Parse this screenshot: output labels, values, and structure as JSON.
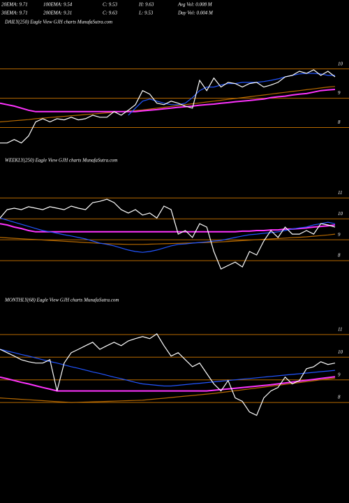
{
  "header": {
    "rows": [
      [
        "20EMA: 9.71",
        "100EMA: 9.54",
        "C: 9.53",
        "H: 9.63",
        "Avg Vol: 0.008 M"
      ],
      [
        "30EMA: 9.71",
        "200EMA: 9.31",
        "C: 9.63",
        "L: 9.53",
        "Day Vol: 0.004 M"
      ]
    ]
  },
  "chart_data": [
    {
      "type": "line",
      "title": "DAILY(250) Eagle View GJH charts MunafaSutra.com",
      "ylim": [
        7.2,
        11.4
      ],
      "yticks": [
        8,
        9,
        10
      ],
      "grid": true,
      "series": [
        {
          "color": "#b86a00",
          "values": [
            8.19,
            8.21,
            8.23,
            8.25,
            8.27,
            8.3,
            8.32,
            8.34,
            8.36,
            8.38,
            8.4,
            8.42,
            8.44,
            8.46,
            8.48,
            8.5,
            8.52,
            8.54,
            8.56,
            8.58,
            8.6,
            8.63,
            8.66,
            8.69,
            8.72,
            8.75,
            8.78,
            8.81,
            8.84,
            8.87,
            8.9,
            8.93,
            8.96,
            8.99,
            9.02,
            9.05,
            9.08,
            9.11,
            9.14,
            9.17,
            9.2,
            9.23,
            9.26,
            9.29,
            9.32,
            9.35,
            9.38,
            9.4
          ]
        },
        {
          "color": "#ff33ff",
          "values": [
            8.83,
            8.78,
            8.73,
            8.66,
            8.59,
            8.54,
            8.54,
            8.54,
            8.54,
            8.54,
            8.54,
            8.54,
            8.54,
            8.54,
            8.54,
            8.54,
            8.54,
            8.54,
            8.54,
            8.54,
            8.57,
            8.59,
            8.61,
            8.64,
            8.66,
            8.69,
            8.71,
            8.73,
            8.76,
            8.78,
            8.8,
            8.83,
            8.85,
            8.88,
            8.9,
            8.92,
            8.95,
            8.97,
            9.02,
            9.05,
            9.07,
            9.11,
            9.14,
            9.16,
            9.21,
            9.26,
            9.28,
            9.3
          ]
        },
        {
          "color": "#2255ff",
          "values": [
            null,
            null,
            null,
            null,
            null,
            null,
            null,
            null,
            null,
            null,
            null,
            null,
            null,
            null,
            null,
            null,
            null,
            null,
            8.42,
            8.66,
            8.9,
            8.97,
            8.9,
            8.83,
            8.78,
            8.78,
            8.83,
            9.02,
            9.26,
            9.38,
            9.38,
            9.45,
            9.5,
            9.5,
            9.54,
            9.54,
            9.54,
            9.57,
            9.61,
            9.66,
            9.73,
            9.78,
            9.83,
            9.85,
            9.85,
            9.83,
            9.78,
            9.78
          ]
        },
        {
          "color": "#ffffff",
          "values": [
            7.47,
            7.47,
            7.59,
            7.47,
            7.71,
            8.19,
            8.3,
            8.19,
            8.3,
            8.26,
            8.35,
            8.26,
            8.3,
            8.42,
            8.35,
            8.35,
            8.54,
            8.42,
            8.59,
            8.78,
            9.26,
            9.14,
            8.83,
            8.78,
            8.9,
            8.83,
            8.73,
            8.66,
            9.61,
            9.26,
            9.69,
            9.38,
            9.54,
            9.5,
            9.38,
            9.5,
            9.54,
            9.38,
            9.45,
            9.54,
            9.73,
            9.78,
            9.92,
            9.85,
            9.97,
            9.78,
            9.92,
            9.73
          ]
        }
      ]
    },
    {
      "type": "line",
      "title": "WEEKLY(250) Eagle View GJH charts MunafaSutra.com",
      "ylim": [
        6.6,
        12.45
      ],
      "yticks": [
        8,
        9,
        10,
        11
      ],
      "grid": true,
      "series": [
        {
          "color": "#b86a00",
          "values": [
            9.11,
            9.09,
            9.07,
            9.05,
            9.03,
            9.01,
            8.99,
            8.97,
            8.95,
            8.93,
            8.91,
            8.89,
            8.87,
            8.85,
            8.83,
            8.81,
            8.8,
            8.79,
            8.78,
            8.78,
            8.78,
            8.79,
            8.8,
            8.81,
            8.82,
            8.83,
            8.84,
            8.85,
            8.86,
            8.87,
            8.88,
            8.9,
            8.92,
            8.94,
            8.96,
            8.98,
            9,
            9.02,
            9.04,
            9.06,
            9.08,
            9.1,
            9.12,
            9.14,
            9.17,
            9.2,
            9.23,
            9.27
          ]
        },
        {
          "color": "#ff33ff",
          "values": [
            9.77,
            9.71,
            9.61,
            9.54,
            9.44,
            9.38,
            9.38,
            9.38,
            9.38,
            9.38,
            9.38,
            9.38,
            9.38,
            9.38,
            9.38,
            9.38,
            9.38,
            9.38,
            9.38,
            9.38,
            9.38,
            9.38,
            9.38,
            9.38,
            9.38,
            9.38,
            9.38,
            9.38,
            9.38,
            9.38,
            9.38,
            9.38,
            9.38,
            9.38,
            9.41,
            9.41,
            9.44,
            9.44,
            9.47,
            9.47,
            9.51,
            9.51,
            9.54,
            9.57,
            9.61,
            9.64,
            9.67,
            9.71
          ]
        },
        {
          "color": "#2255ff",
          "values": [
            10.04,
            9.94,
            9.84,
            9.74,
            9.64,
            9.54,
            9.44,
            9.38,
            9.31,
            9.24,
            9.18,
            9.11,
            9.04,
            8.94,
            8.84,
            8.78,
            8.71,
            8.61,
            8.51,
            8.44,
            8.4,
            8.44,
            8.51,
            8.61,
            8.71,
            8.78,
            8.8,
            8.84,
            8.87,
            8.9,
            8.94,
            8.97,
            9.04,
            9.11,
            9.18,
            9.24,
            9.27,
            9.31,
            9.34,
            9.38,
            9.44,
            9.51,
            9.57,
            9.61,
            9.71,
            9.77,
            9.84,
            9.77
          ]
        },
        {
          "color": "#ffffff",
          "values": [
            10.04,
            10.44,
            10.51,
            10.44,
            10.58,
            10.51,
            10.44,
            10.58,
            10.51,
            10.44,
            10.61,
            10.51,
            10.44,
            10.78,
            10.84,
            10.94,
            10.78,
            10.44,
            10.28,
            10.44,
            10.18,
            10.28,
            10.04,
            10.61,
            10.44,
            9.27,
            9.44,
            9.11,
            9.77,
            9.61,
            8.44,
            7.6,
            7.77,
            7.93,
            7.7,
            8.44,
            8.27,
            8.94,
            9.44,
            9.11,
            9.61,
            9.27,
            9.27,
            9.44,
            9.27,
            9.77,
            9.71,
            9.61
          ]
        }
      ]
    },
    {
      "type": "line",
      "title": "MONTHLY(68) Eagle View GJH charts MunafaSutra.com",
      "ylim": [
        6.8,
        12.2
      ],
      "yticks": [
        8,
        9,
        10,
        11
      ],
      "grid": true,
      "series": [
        {
          "color": "#b86a00",
          "values": [
            8.2,
            8.18,
            8.16,
            8.14,
            8.12,
            8.1,
            8.08,
            8.06,
            8.04,
            8.02,
            8.0,
            8.01,
            8.02,
            8.03,
            8.04,
            8.05,
            8.06,
            8.07,
            8.08,
            8.09,
            8.1,
            8.13,
            8.16,
            8.19,
            8.22,
            8.25,
            8.28,
            8.31,
            8.34,
            8.37,
            8.4,
            8.44,
            8.48,
            8.52,
            8.56,
            8.6,
            8.64,
            8.68,
            8.72,
            8.76,
            8.8,
            8.84,
            8.88,
            8.92,
            8.96,
            9.0,
            9.04,
            9.08
          ]
        },
        {
          "color": "#ff33ff",
          "values": [
            9.12,
            9.05,
            8.97,
            8.89,
            8.82,
            8.74,
            8.66,
            8.59,
            8.51,
            8.51,
            8.51,
            8.51,
            8.51,
            8.51,
            8.51,
            8.51,
            8.51,
            8.51,
            8.51,
            8.51,
            8.51,
            8.51,
            8.51,
            8.51,
            8.51,
            8.51,
            8.51,
            8.51,
            8.51,
            8.51,
            8.54,
            8.57,
            8.6,
            8.63,
            8.66,
            8.69,
            8.72,
            8.75,
            8.78,
            8.82,
            8.86,
            8.9,
            8.94,
            8.98,
            9.02,
            9.06,
            9.1,
            9.14
          ]
        },
        {
          "color": "#2255ff",
          "values": [
            10.35,
            10.27,
            10.2,
            10.12,
            10.05,
            9.97,
            9.89,
            9.81,
            9.74,
            9.66,
            9.58,
            9.51,
            9.43,
            9.35,
            9.28,
            9.2,
            9.12,
            9.05,
            8.97,
            8.89,
            8.82,
            8.79,
            8.76,
            8.73,
            8.73,
            8.76,
            8.79,
            8.82,
            8.85,
            8.88,
            8.91,
            8.94,
            8.97,
            9,
            9.03,
            9.06,
            9.09,
            9.12,
            9.15,
            9.18,
            9.21,
            9.24,
            9.27,
            9.3,
            9.33,
            9.36,
            9.39,
            9.42
          ]
        },
        {
          "color": "#ffffff",
          "values": [
            10.35,
            10.2,
            10.05,
            9.89,
            9.8,
            9.74,
            9.74,
            9.89,
            8.51,
            9.74,
            10.2,
            10.35,
            10.51,
            10.66,
            10.35,
            10.51,
            10.66,
            10.51,
            10.72,
            10.82,
            10.91,
            10.82,
            11.03,
            10.51,
            10.05,
            10.2,
            9.89,
            9.58,
            9.74,
            9.28,
            8.82,
            8.51,
            8.97,
            8.2,
            8.05,
            7.58,
            7.43,
            8.2,
            8.51,
            8.66,
            9.12,
            8.82,
            8.97,
            9.49,
            9.58,
            9.8,
            9.68,
            9.74
          ]
        }
      ]
    }
  ]
}
